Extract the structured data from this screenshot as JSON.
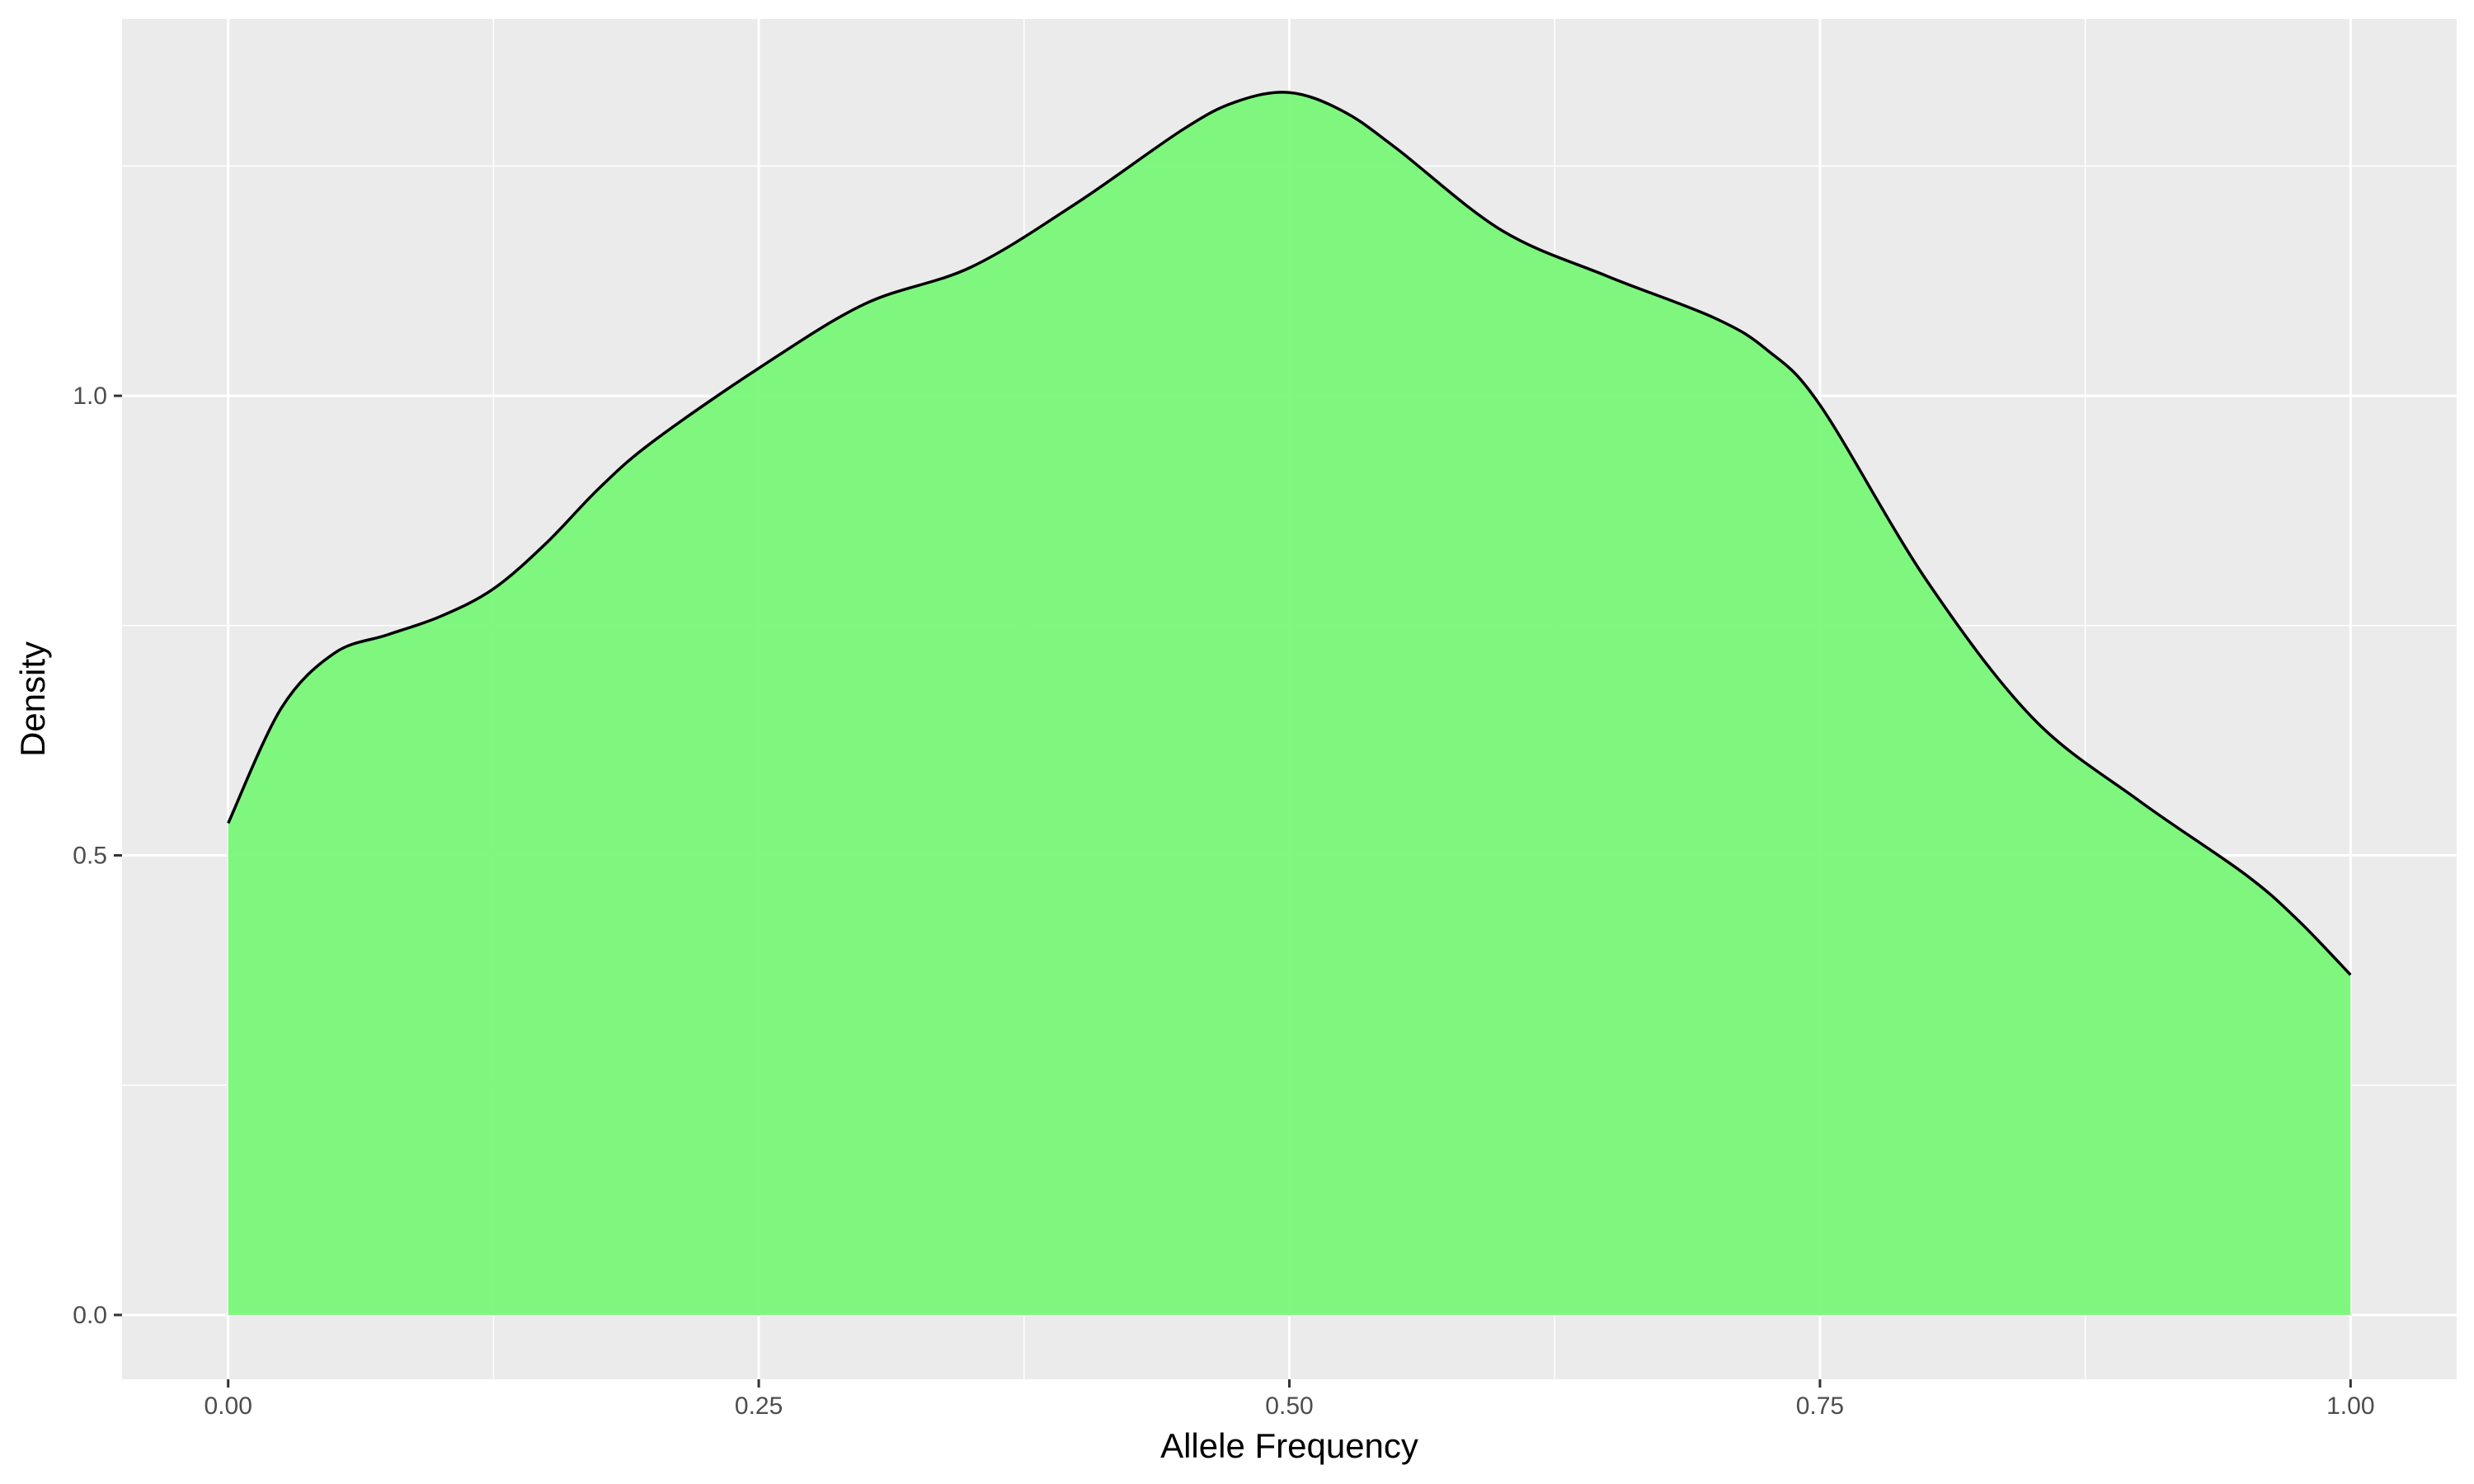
{
  "chart_data": {
    "type": "area",
    "title": "",
    "xlabel": "Allele Frequency",
    "ylabel": "Density",
    "xlim": [
      -0.05,
      1.05
    ],
    "ylim": [
      -0.07,
      1.41
    ],
    "x_ticks": [
      0.0,
      0.25,
      0.5,
      0.75,
      1.0
    ],
    "x_tick_labels": [
      "0.00",
      "0.25",
      "0.50",
      "0.75",
      "1.00"
    ],
    "y_ticks": [
      0.0,
      0.5,
      1.0
    ],
    "y_tick_labels": [
      "0.0",
      "0.5",
      "1.0"
    ],
    "grid": true,
    "legend": "none",
    "colors": {
      "panel_background": "#ebebeb",
      "grid": "#ffffff",
      "fill": "#76f776",
      "line": "#000000",
      "tick_label": "#4d4d4d"
    },
    "series": [
      {
        "x": [
          0.0,
          0.025,
          0.05,
          0.075,
          0.1,
          0.125,
          0.15,
          0.175,
          0.2,
          0.25,
          0.3,
          0.35,
          0.4,
          0.45,
          0.475,
          0.5,
          0.525,
          0.55,
          0.6,
          0.65,
          0.7,
          0.725,
          0.75,
          0.8,
          0.85,
          0.9,
          0.95,
          0.975,
          1.0
        ],
        "y": [
          0.535,
          0.66,
          0.72,
          0.74,
          0.76,
          0.79,
          0.84,
          0.9,
          0.95,
          1.03,
          1.1,
          1.14,
          1.21,
          1.29,
          1.32,
          1.33,
          1.31,
          1.27,
          1.18,
          1.13,
          1.085,
          1.05,
          0.99,
          0.8,
          0.65,
          0.56,
          0.48,
          0.43,
          0.37
        ]
      }
    ]
  }
}
